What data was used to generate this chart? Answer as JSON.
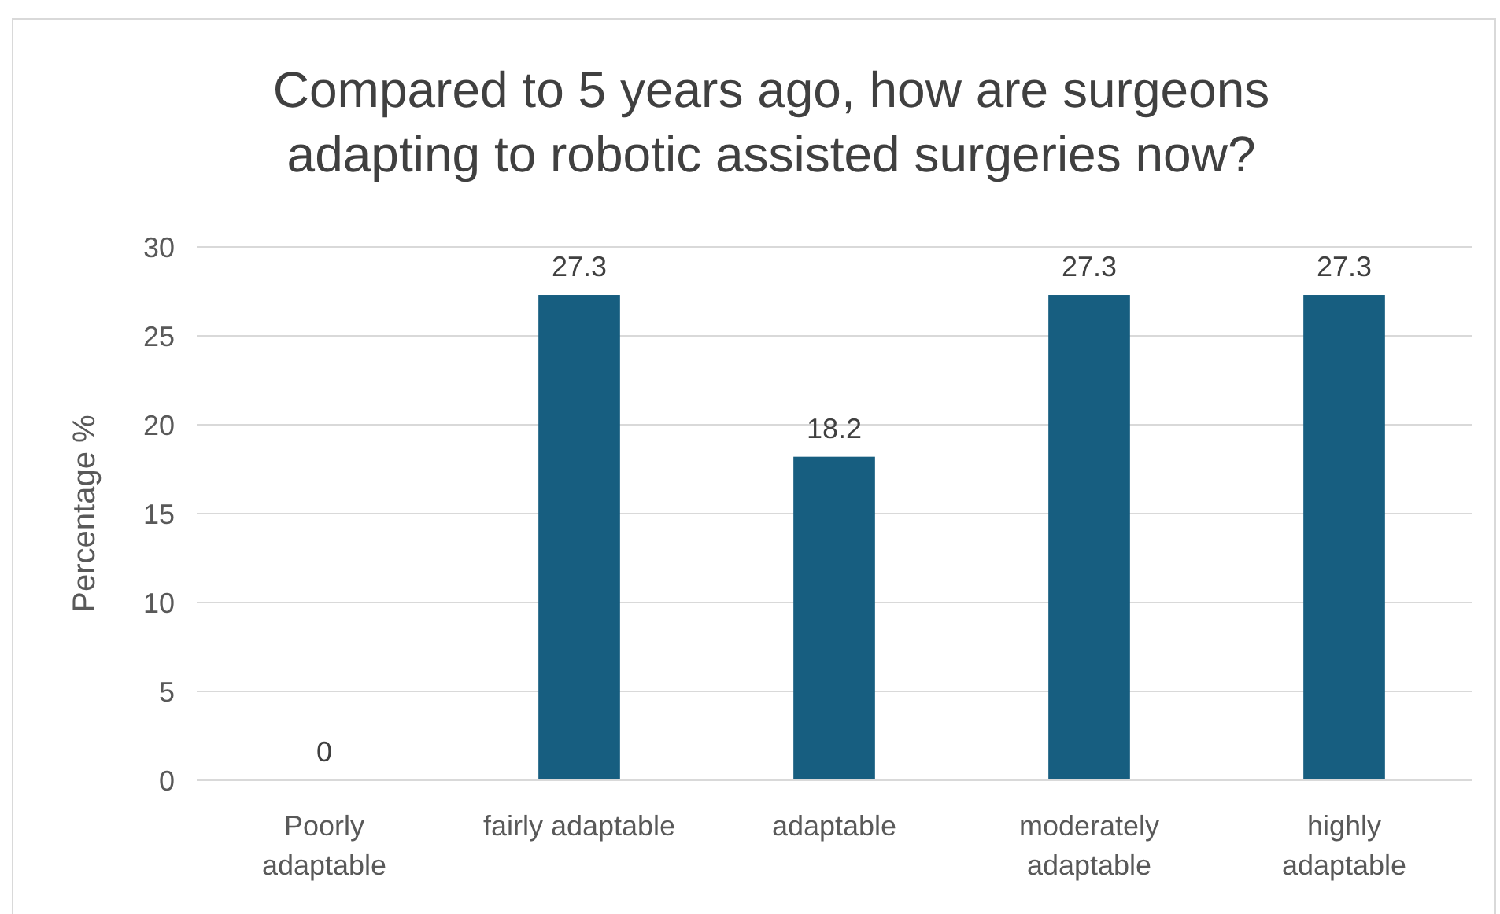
{
  "chart_data": {
    "type": "bar",
    "title": "Compared to 5 years ago, how are surgeons adapting to robotic assisted surgeries now?",
    "ylabel": "Percentage %",
    "categories": [
      "Poorly adaptable",
      "fairly adaptable",
      "adaptable",
      "moderately adaptable",
      "highly adaptable"
    ],
    "values": [
      0,
      27.3,
      18.2,
      27.3,
      27.3
    ],
    "color": "#175e80",
    "ylim": [
      0,
      30
    ],
    "yticks": [
      0,
      5,
      10,
      15,
      20,
      25,
      30
    ],
    "grid": "y",
    "data_labels": true
  }
}
